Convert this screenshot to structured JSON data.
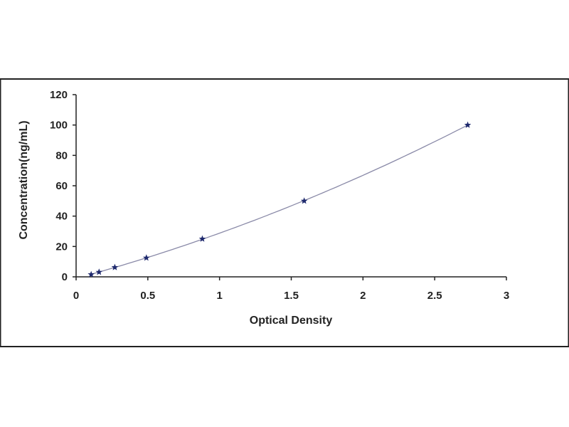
{
  "chart_data": {
    "type": "scatter",
    "title": "",
    "xlabel": "Optical Density",
    "ylabel": "Concentration(ng/mL)",
    "xlim": [
      0,
      3
    ],
    "ylim": [
      0,
      120
    ],
    "x_ticks": [
      "0",
      "0.5",
      "1",
      "1.5",
      "2",
      "2.5",
      "3"
    ],
    "y_ticks": [
      "0",
      "20",
      "40",
      "60",
      "80",
      "100",
      "120"
    ],
    "grid": false,
    "legend": "none",
    "fit_line": true,
    "colors": {
      "line": "#8a8aa8",
      "marker": "#1f2a6e",
      "axis": "#222222",
      "frame": "#222222"
    },
    "series": [
      {
        "x": [
          0.105,
          0.16,
          0.27,
          0.49,
          0.88,
          1.59,
          2.73
        ],
        "y": [
          1.56,
          3.13,
          6.25,
          12.5,
          25,
          50,
          100
        ]
      }
    ]
  }
}
